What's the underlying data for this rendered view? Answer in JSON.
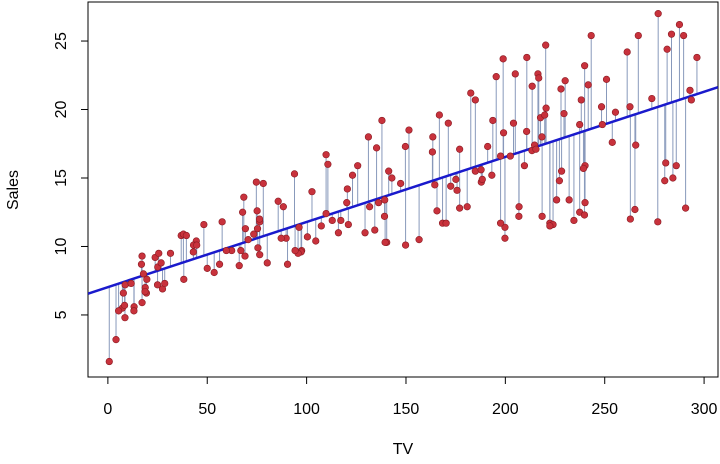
{
  "chart_data": {
    "type": "scatter",
    "xlabel": "TV",
    "ylabel": "Sales",
    "xlim": [
      -10,
      307
    ],
    "ylim": [
      0.47,
      27.85
    ],
    "xticks": [
      0,
      50,
      100,
      150,
      200,
      250,
      300
    ],
    "yticks": [
      5,
      10,
      15,
      20,
      25
    ],
    "color": "#c8323c",
    "line_color": "#1a1acc",
    "residual_color": "#8899bb",
    "fit_line": {
      "intercept": 7.0326,
      "slope": 0.04754
    },
    "x": [
      230.1,
      44.5,
      17.2,
      151.5,
      180.8,
      8.7,
      57.5,
      120.2,
      8.6,
      199.8,
      66.1,
      214.7,
      23.8,
      97.5,
      204.1,
      195.4,
      67.8,
      281.4,
      69.2,
      147.3,
      218.4,
      237.4,
      13.2,
      228.3,
      62.3,
      262.9,
      142.9,
      240.1,
      248.8,
      70.6,
      292.9,
      112.9,
      97.2,
      265.6,
      95.7,
      290.7,
      266.9,
      74.7,
      43.1,
      228,
      202.5,
      177,
      293.6,
      206.9,
      25.1,
      175.1,
      89.7,
      239.9,
      227.2,
      66.9,
      199.8,
      100.4,
      216.4,
      182.6,
      262.7,
      198.9,
      7.3,
      136.2,
      210.8,
      210.7,
      53.5,
      261.3,
      239.3,
      102.7,
      131.1,
      69,
      31.5,
      139.3,
      237.4,
      216.8,
      199.1,
      109.8,
      26.8,
      129.4,
      213.4,
      16.9,
      27.5,
      120.5,
      5.4,
      116,
      76.4,
      239.8,
      75.3,
      68.4,
      213.5,
      193.2,
      76.3,
      110.7,
      88.3,
      109.8,
      134.3,
      28.6,
      217.7,
      250.9,
      107.4,
      163.3,
      197.6,
      184.9,
      289.7,
      135.2,
      222.4,
      296.4,
      280.2,
      187.9,
      238.2,
      137.9,
      25,
      90.4,
      13.1,
      255.4,
      225.8,
      241.7,
      175.7,
      209.6,
      78.2,
      75.1,
      139.2,
      76.4,
      125.7,
      19.4,
      141.3,
      18.8,
      224,
      123.1,
      229.5,
      87.2,
      7.8,
      80.2,
      220.3,
      59.6,
      0.7,
      265.2,
      8.4,
      219.8,
      36.9,
      48.3,
      25.6,
      273.7,
      43,
      184.9,
      73.4,
      193.7,
      220.5,
      104.6,
      96.2,
      140.3,
      240.1,
      243.2,
      38,
      44.7,
      280.7,
      121,
      197.6,
      171.3,
      187.8,
      4.1,
      93.9,
      149.8,
      11.7,
      131.7,
      172.5,
      85.7,
      188.4,
      163.5,
      117.2,
      234.5,
      17.9,
      206.8,
      215.4,
      284.3,
      50,
      164.5,
      19.6,
      168.4,
      222.4,
      276.9,
      248.4,
      170.2,
      276.7,
      165.6,
      156.6,
      218.5,
      56.2,
      287.6,
      253.8,
      205,
      139.5,
      191.1,
      286,
      18.7,
      39.5,
      75.5,
      17.2,
      166.8,
      149.7,
      38.2,
      94.2,
      177,
      283.6,
      232.1
    ],
    "values": [
      22.1,
      10.4,
      9.3,
      18.5,
      12.9,
      7.2,
      11.8,
      13.2,
      4.8,
      10.6,
      8.6,
      17.4,
      9.2,
      9.7,
      19,
      22.4,
      12.5,
      24.4,
      11.3,
      14.6,
      18,
      12.5,
      5.6,
      15.5,
      9.7,
      12,
      15,
      15.9,
      18.9,
      10.5,
      21.4,
      11.9,
      9.6,
      17.4,
      9.5,
      12.8,
      25.4,
      14.7,
      10.1,
      21.5,
      16.6,
      17.1,
      20.7,
      12.9,
      8.5,
      14.9,
      10.6,
      23.2,
      14.8,
      9.7,
      11.4,
      10.7,
      22.6,
      21.2,
      20.2,
      23.7,
      5.5,
      13.2,
      23.8,
      18.4,
      8.1,
      24.2,
      15.7,
      14,
      18,
      9.3,
      9.5,
      13.4,
      18.9,
      22.3,
      18.3,
      12.4,
      8.8,
      11,
      17,
      8.7,
      6.9,
      14.2,
      5.3,
      11,
      11.8,
      12.3,
      11.3,
      13.6,
      21.7,
      15.2,
      12,
      16,
      12.9,
      16.7,
      11.2,
      7.3,
      19.4,
      22.2,
      11.5,
      16.9,
      11.7,
      15.5,
      25.4,
      17.2,
      11.7,
      23.8,
      14.8,
      14.7,
      20.7,
      19.2,
      7.2,
      8.7,
      5.3,
      19.8,
      13.4,
      21.8,
      14.1,
      15.9,
      14.6,
      12.6,
      12.2,
      9.4,
      15.9,
      6.6,
      15.5,
      7,
      11.6,
      15.2,
      19.7,
      10.6,
      6.6,
      8.8,
      24.7,
      9.7,
      1.6,
      12.7,
      5.7,
      19.6,
      10.8,
      11.6,
      9.5,
      20.8,
      9.6,
      20.7,
      10.9,
      19.2,
      20.1,
      10.4,
      11.4,
      10.3,
      13.2,
      25.4,
      10.9,
      10.1,
      16.1,
      11.6,
      16.6,
      19,
      15.6,
      3.2,
      15.3,
      10.1,
      7.3,
      12.9,
      14.4,
      13.3,
      14.9,
      18,
      11.9,
      11.9,
      8,
      12.2,
      17.1,
      15,
      8.4,
      14.5,
      7.6,
      11.7,
      11.5,
      27,
      20.2,
      11.7,
      11.8,
      12.6,
      10.5,
      12.2,
      8.7,
      26.2,
      17.6,
      22.6,
      10.3,
      17.3,
      15.9,
      6.7,
      10.8,
      9.9,
      5.9,
      19.6,
      17.3,
      7.6,
      9.7,
      12.8,
      25.5,
      13.4
    ]
  }
}
